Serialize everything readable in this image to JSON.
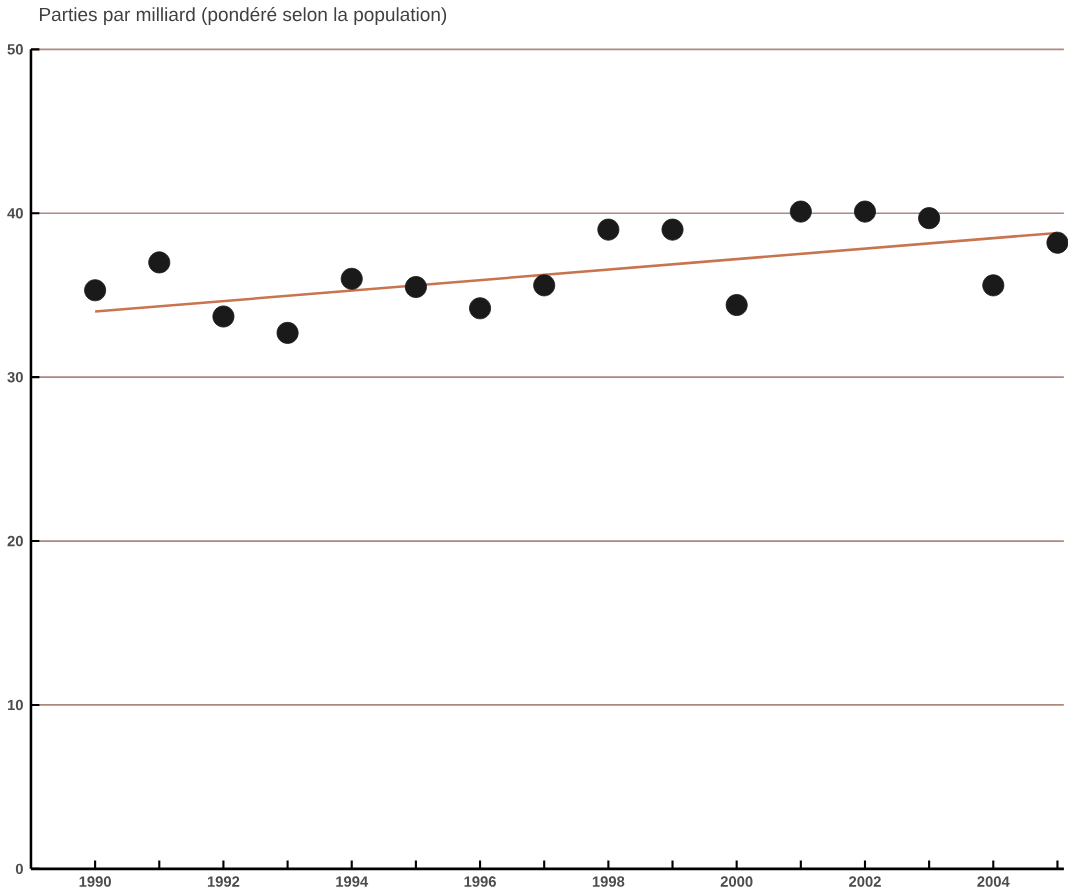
{
  "chart_data": {
    "type": "scatter",
    "title": "Parties par milliard (pondéré selon la population)",
    "x": [
      1990,
      1991,
      1992,
      1993,
      1994,
      1995,
      1996,
      1997,
      1998,
      1999,
      2000,
      2001,
      2002,
      2003,
      2004,
      2005
    ],
    "series": [
      {
        "color": "#1a1a1a",
        "values": [
          35.3,
          37.0,
          33.7,
          32.7,
          36.0,
          35.5,
          34.2,
          35.6,
          39.0,
          39.0,
          34.4,
          40.1,
          40.1,
          39.7,
          35.6,
          38.2
        ]
      },
      {
        "type": "line",
        "marker": "none",
        "color": "#c8744f",
        "x": [
          1990,
          2005
        ],
        "values": [
          34.0,
          38.8
        ]
      }
    ],
    "marker": "circle",
    "xlim": [
      1989,
      2005.1
    ],
    "ylim": [
      0,
      50
    ],
    "xticks": [
      1990,
      {
        "value": 1991,
        "label": null
      },
      1992,
      {
        "value": 1993,
        "label": null
      },
      1994,
      {
        "value": 1995,
        "label": null
      },
      1996,
      {
        "value": 1997,
        "label": null
      },
      1998,
      {
        "value": 1999,
        "label": null
      },
      2000,
      {
        "value": 2001,
        "label": null
      },
      2002,
      {
        "value": 2003,
        "label": null
      },
      2004,
      {
        "value": 2005,
        "label": null
      }
    ],
    "yticks": [
      0,
      10,
      20,
      30,
      40,
      50
    ],
    "grid": "y"
  }
}
